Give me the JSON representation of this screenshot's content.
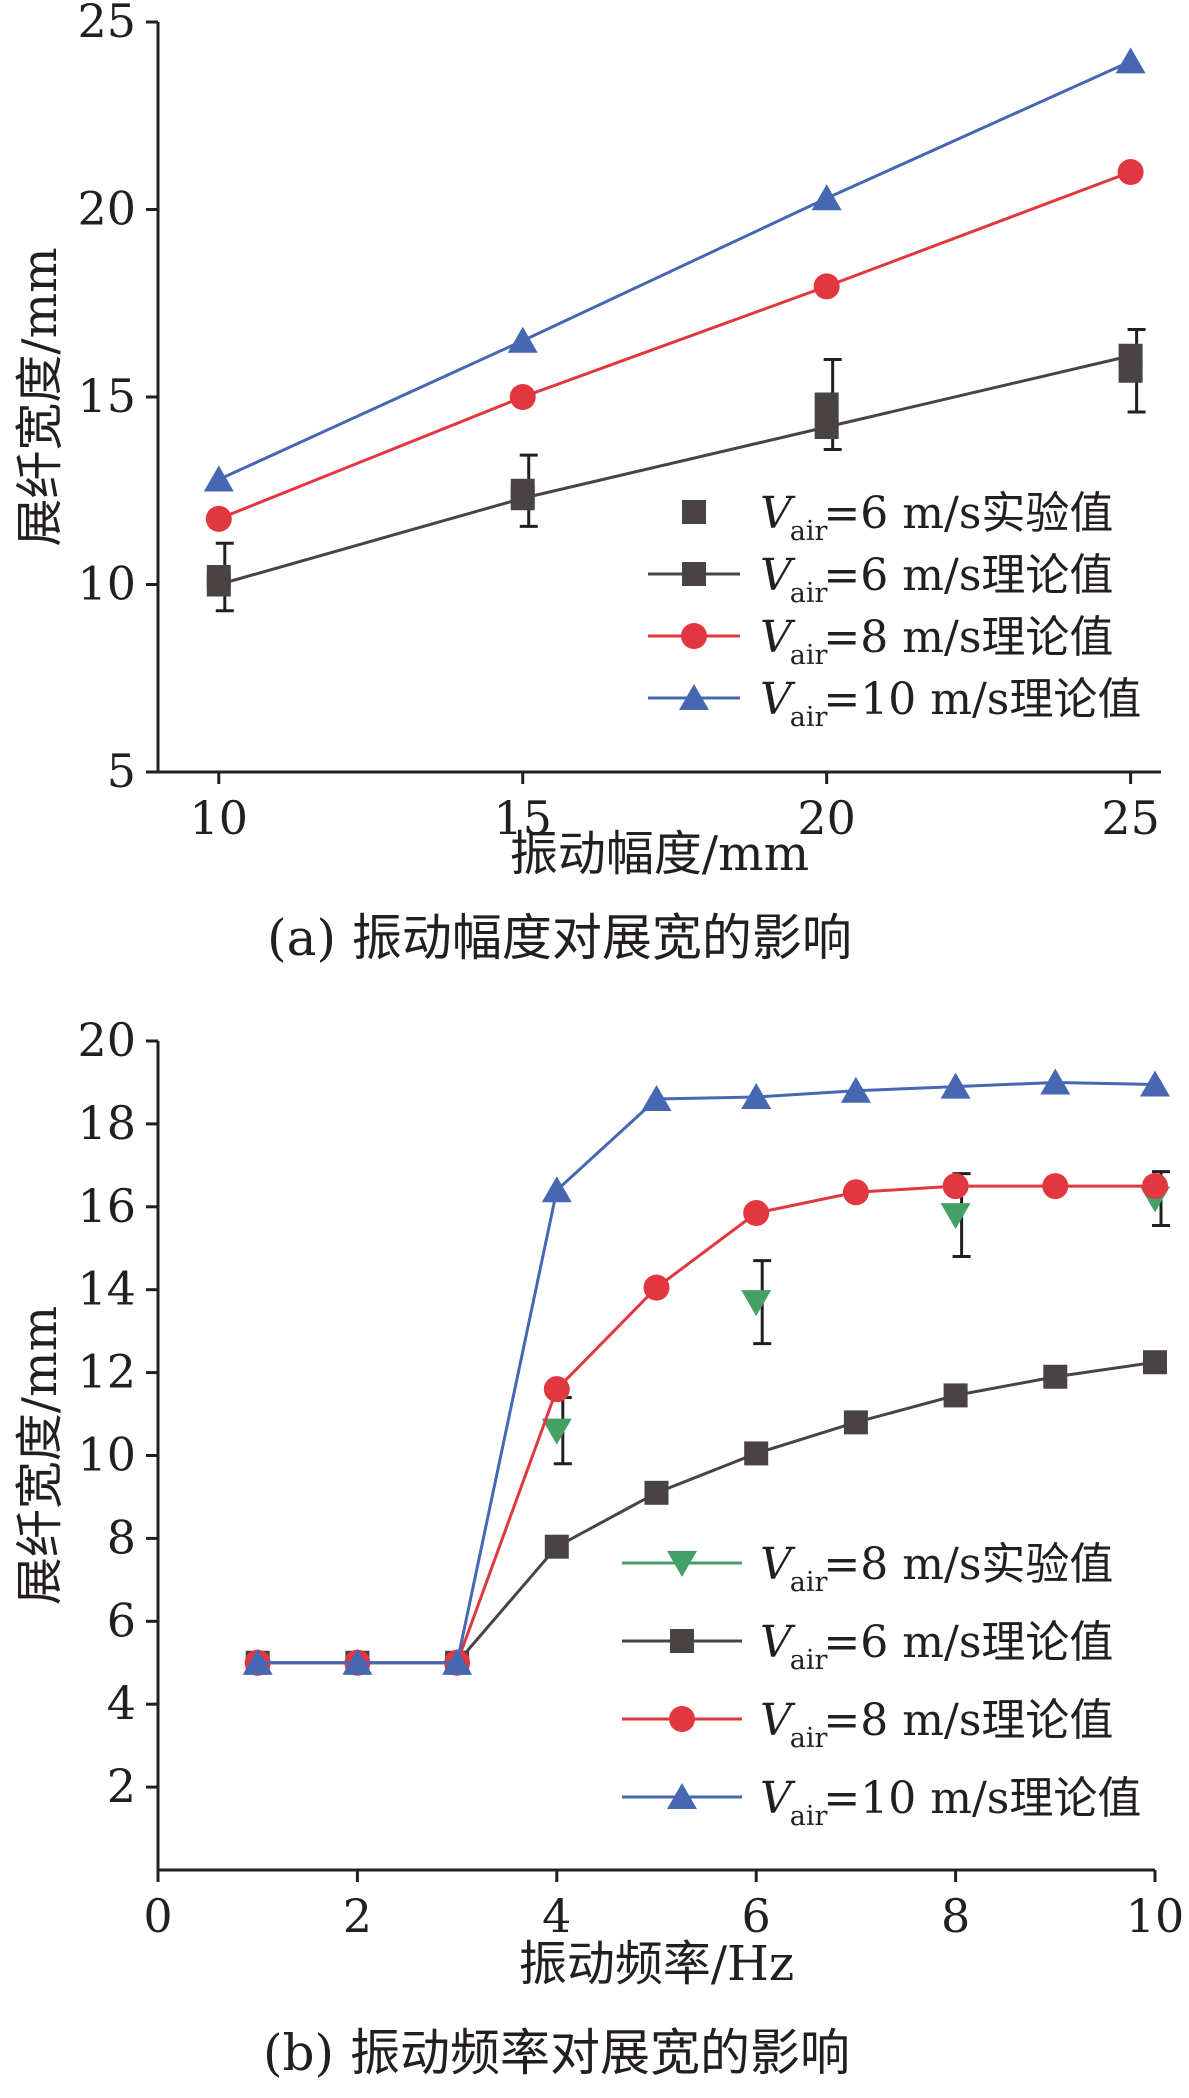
{
  "colors": {
    "exp_square": "#4a4344",
    "black_theory": "#4a4344",
    "red_theory": "#e2373f",
    "blue_theory": "#4767b3",
    "green_exp": "#44a165",
    "axis": "#231f20"
  },
  "chart_data": [
    {
      "type": "line",
      "caption": "(a) 振动幅度对展宽的影响",
      "xlabel": "振动幅度/mm",
      "ylabel": "展纤宽度/mm",
      "xlim": [
        9,
        25.5
      ],
      "ylim": [
        5,
        25
      ],
      "xticks": [
        "10",
        "15",
        "20",
        "25"
      ],
      "yticks": [
        "5",
        "10",
        "15",
        "20",
        "25"
      ],
      "legend_position": "bottom-right",
      "series": [
        {
          "name": "=6 m/s实验值",
          "label_prefix": "V",
          "label_sub": "air",
          "kind": "experiment",
          "marker": "square",
          "color": "#4a4344",
          "x": [
            10,
            15,
            20,
            25
          ],
          "y": [
            10.2,
            12.5,
            14.8,
            15.7
          ],
          "err": [
            0.9,
            0.95,
            1.2,
            1.1
          ]
        },
        {
          "name": "=6 m/s理论值",
          "label_prefix": "V",
          "label_sub": "air",
          "kind": "theory",
          "marker": "square",
          "color": "#4a4344",
          "x": [
            10,
            15,
            20,
            25
          ],
          "y": [
            10.0,
            12.3,
            14.2,
            16.1
          ]
        },
        {
          "name": "=8 m/s理论值",
          "label_prefix": "V",
          "label_sub": "air",
          "kind": "theory",
          "marker": "circle",
          "color": "#e2373f",
          "x": [
            10,
            15,
            20,
            25
          ],
          "y": [
            11.75,
            15.0,
            17.95,
            21.0
          ]
        },
        {
          "name": "=10 m/s理论值",
          "label_prefix": "V",
          "label_sub": "air",
          "kind": "theory",
          "marker": "triangle-up",
          "color": "#4767b3",
          "x": [
            10,
            15,
            20,
            25
          ],
          "y": [
            12.8,
            16.5,
            20.3,
            23.95
          ]
        }
      ]
    },
    {
      "type": "line",
      "caption": "(b) 振动频率对展宽的影响",
      "xlabel": "振动频率/Hz",
      "ylabel": "展纤宽度/mm",
      "xlim": [
        0,
        10
      ],
      "ylim": [
        0,
        20
      ],
      "xticks": [
        "0",
        "2",
        "4",
        "6",
        "8",
        "10"
      ],
      "yticks": [
        "2",
        "4",
        "6",
        "8",
        "10",
        "12",
        "14",
        "16",
        "18",
        "20"
      ],
      "legend_position": "bottom-right",
      "series": [
        {
          "name": "=8 m/s实验值",
          "label_prefix": "V",
          "label_sub": "air",
          "kind": "experiment",
          "marker": "triangle-down",
          "color": "#44a165",
          "legend_line": true,
          "x": [
            4,
            6,
            8,
            10
          ],
          "y": [
            10.6,
            13.7,
            15.8,
            16.2
          ],
          "err": [
            0.8,
            1.0,
            1.0,
            0.65
          ]
        },
        {
          "name": "=6 m/s理论值",
          "label_prefix": "V",
          "label_sub": "air",
          "kind": "theory",
          "marker": "square",
          "color": "#4a4344",
          "x": [
            1,
            2,
            3,
            4,
            5,
            6,
            7,
            8,
            9,
            10
          ],
          "y": [
            5.0,
            5.0,
            5.0,
            7.8,
            9.1,
            10.05,
            10.8,
            11.45,
            11.9,
            12.25
          ]
        },
        {
          "name": "=8 m/s理论值",
          "label_prefix": "V",
          "label_sub": "air",
          "kind": "theory",
          "marker": "circle",
          "color": "#e2373f",
          "x": [
            1,
            2,
            3,
            4,
            5,
            6,
            7,
            8,
            9,
            10
          ],
          "y": [
            5.0,
            5.0,
            5.0,
            11.6,
            14.05,
            15.85,
            16.35,
            16.5,
            16.5,
            16.5
          ]
        },
        {
          "name": "=10 m/s理论值",
          "label_prefix": "V",
          "label_sub": "air",
          "kind": "theory",
          "marker": "triangle-up",
          "color": "#4767b3",
          "x": [
            1,
            2,
            3,
            4,
            5,
            6,
            7,
            8,
            9,
            10
          ],
          "y": [
            5.0,
            5.0,
            5.0,
            16.4,
            18.6,
            18.65,
            18.8,
            18.9,
            19.0,
            18.95
          ]
        }
      ]
    }
  ]
}
